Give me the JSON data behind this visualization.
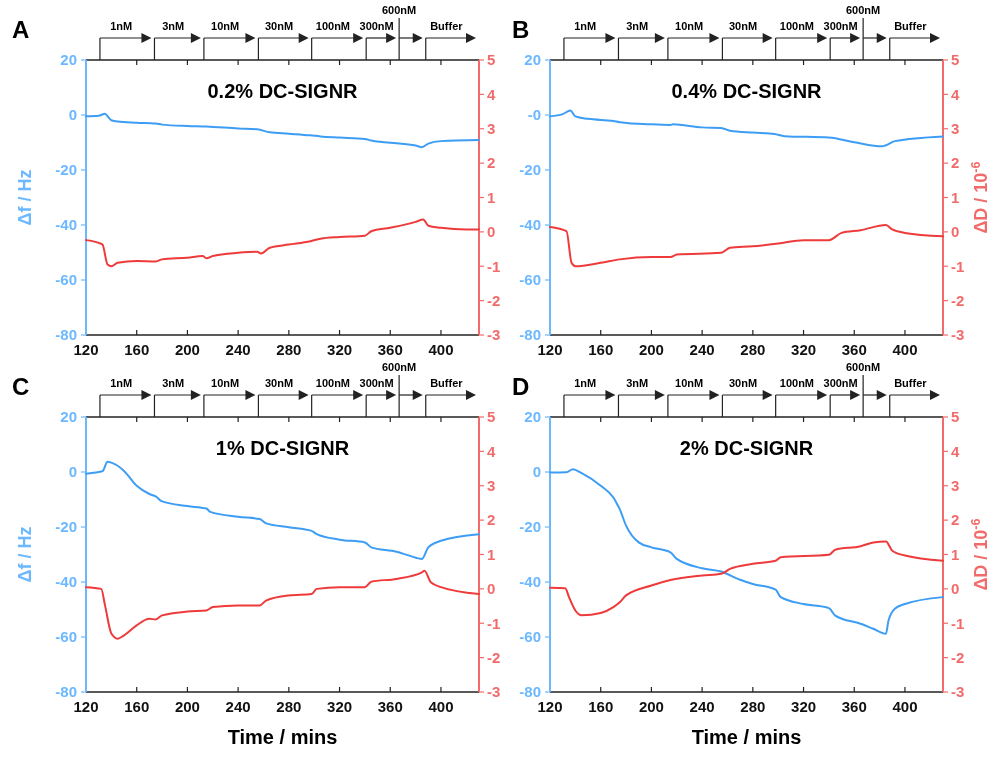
{
  "chart_data": [
    {
      "type": "line",
      "title": "0.2% DC-SIGNR",
      "ylabel": "Δf / Hz",
      "xlim": [
        120,
        430
      ],
      "xticks": [
        120,
        160,
        200,
        240,
        280,
        320,
        360,
        400
      ],
      "ylim": [
        -80,
        20
      ],
      "yticks": [
        -80,
        -60,
        -40,
        -20,
        0,
        20
      ],
      "y2lim": [
        -3,
        5
      ],
      "y2ticks": [
        -3,
        -2,
        -1,
        0,
        1,
        2,
        3,
        4,
        5
      ],
      "annotations": [
        "A"
      ],
      "ref_lines": [
        {
          "axis": "x",
          "value": 131,
          "label": "1nM"
        },
        {
          "axis": "x",
          "value": 174,
          "label": "3nM"
        },
        {
          "axis": "x",
          "value": 213,
          "label": "10nM"
        },
        {
          "axis": "x",
          "value": 256,
          "label": "30nM"
        },
        {
          "axis": "x",
          "value": 298,
          "label": "100nM"
        },
        {
          "axis": "x",
          "value": 341,
          "label": "300nM"
        },
        {
          "axis": "x",
          "value": 367,
          "label": "600nM"
        },
        {
          "axis": "x",
          "value": 388,
          "label": "Buffer"
        }
      ],
      "series": [
        {
          "color": "#3d9df5",
          "x": [
            120,
            130,
            135,
            138,
            140,
            145,
            160,
            175,
            180,
            200,
            215,
            240,
            255,
            265,
            280,
            297,
            305,
            320,
            340,
            345,
            360,
            380,
            385,
            390,
            400,
            430
          ],
          "values": [
            -0.5,
            -0.3,
            0.5,
            -1,
            -1.9,
            -2.4,
            -2.8,
            -3.1,
            -3.5,
            -4,
            -4.2,
            -4.9,
            -5.2,
            -6.3,
            -6.8,
            -7.4,
            -7.8,
            -8.2,
            -8.7,
            -9.3,
            -10.1,
            -11.1,
            -11.7,
            -10.4,
            -9.5,
            -9.1
          ]
        },
        {
          "color": "#ee3a3a",
          "axis": "y2",
          "x": [
            120,
            130,
            133,
            137,
            140,
            145,
            160,
            175,
            180,
            200,
            212,
            215,
            220,
            240,
            255,
            258,
            265,
            280,
            297,
            305,
            320,
            340,
            345,
            360,
            380,
            386,
            390,
            400,
            420,
            430
          ],
          "values": [
            -0.24,
            -0.32,
            -0.37,
            -0.95,
            -1.0,
            -0.9,
            -0.85,
            -0.86,
            -0.8,
            -0.75,
            -0.7,
            -0.77,
            -0.7,
            -0.61,
            -0.58,
            -0.63,
            -0.46,
            -0.37,
            -0.27,
            -0.2,
            -0.15,
            -0.11,
            0.02,
            0.12,
            0.29,
            0.36,
            0.18,
            0.12,
            0.07,
            0.07
          ]
        }
      ]
    },
    {
      "type": "line",
      "title": "0.4% DC-SIGNR",
      "y2label": "ΔD / 10$^{-6}$",
      "xlim": [
        120,
        430
      ],
      "xticks": [
        120,
        160,
        200,
        240,
        280,
        320,
        360,
        400
      ],
      "ylim": [
        -80,
        20
      ],
      "yticks": [
        -80,
        -60,
        -40,
        -20,
        {
          "value": 0,
          "label": "-0"
        },
        20
      ],
      "y2lim": [
        -3,
        5
      ],
      "y2ticks": [
        -3,
        -2,
        -1,
        0,
        1,
        2,
        3,
        4,
        5
      ],
      "annotations": [
        "B"
      ],
      "ref_lines": [
        {
          "axis": "x",
          "value": 131,
          "label": "1nM"
        },
        {
          "axis": "x",
          "value": 174,
          "label": "3nM"
        },
        {
          "axis": "x",
          "value": 213,
          "label": "10nM"
        },
        {
          "axis": "x",
          "value": 256,
          "label": "30nM"
        },
        {
          "axis": "x",
          "value": 298,
          "label": "100nM"
        },
        {
          "axis": "x",
          "value": 341,
          "label": "300nM"
        },
        {
          "axis": "x",
          "value": 367,
          "label": "600nM"
        },
        {
          "axis": "x",
          "value": 388,
          "label": "Buffer"
        }
      ],
      "series": [
        {
          "color": "#3d9df5",
          "x": [
            120,
            130,
            136,
            140,
            150,
            170,
            175,
            200,
            215,
            217,
            240,
            255,
            262,
            280,
            297,
            305,
            340,
            360,
            382,
            385,
            392,
            430
          ],
          "values": [
            -0.5,
            0.3,
            1.6,
            -0.5,
            -1.4,
            -2.2,
            -2.6,
            -3.4,
            -3.6,
            -3.4,
            -4.5,
            -4.7,
            -5.7,
            -6.4,
            -6.9,
            -7.7,
            -8.2,
            -9.9,
            -11.4,
            -11,
            -9.5,
            -7.8
          ]
        },
        {
          "color": "#ee3a3a",
          "axis": "y2",
          "x": [
            120,
            133,
            137,
            140,
            160,
            175,
            200,
            215,
            220,
            255,
            262,
            280,
            300,
            320,
            340,
            350,
            365,
            385,
            390,
            400,
            430
          ],
          "values": [
            0.14,
            0.02,
            -0.9,
            -1.0,
            -0.9,
            -0.8,
            -0.73,
            -0.73,
            -0.66,
            -0.61,
            -0.46,
            -0.42,
            -0.34,
            -0.24,
            -0.24,
            -0.03,
            0.05,
            0.2,
            0.07,
            -0.03,
            -0.13
          ]
        }
      ]
    },
    {
      "type": "line",
      "title": "1% DC-SIGNR",
      "xlabel": "Time / mins",
      "ylabel": "Δf / Hz",
      "xlim": [
        120,
        430
      ],
      "xticks": [
        120,
        160,
        200,
        240,
        280,
        320,
        360,
        400
      ],
      "ylim": [
        -80,
        20
      ],
      "yticks": [
        -80,
        -60,
        -40,
        -20,
        0,
        20
      ],
      "y2lim": [
        -3,
        5
      ],
      "y2ticks": [
        -3,
        -2,
        -1,
        0,
        1,
        2,
        3,
        4,
        5
      ],
      "annotations": [
        "C"
      ],
      "ref_lines": [
        {
          "axis": "x",
          "value": 131,
          "label": "1nM"
        },
        {
          "axis": "x",
          "value": 174,
          "label": "3nM"
        },
        {
          "axis": "x",
          "value": 213,
          "label": "10nM"
        },
        {
          "axis": "x",
          "value": 256,
          "label": "30nM"
        },
        {
          "axis": "x",
          "value": 298,
          "label": "100nM"
        },
        {
          "axis": "x",
          "value": 341,
          "label": "300nM"
        },
        {
          "axis": "x",
          "value": 367,
          "label": "600nM"
        },
        {
          "axis": "x",
          "value": 388,
          "label": "Buffer"
        }
      ],
      "series": [
        {
          "color": "#3d9df5",
          "x": [
            120,
            130,
            133,
            137,
            140,
            150,
            160,
            170,
            175,
            180,
            200,
            215,
            218,
            240,
            257,
            262,
            280,
            298,
            302,
            320,
            340,
            345,
            365,
            375,
            385,
            390,
            400,
            430
          ],
          "values": [
            -0.6,
            0,
            0.3,
            3.7,
            3.4,
            0.4,
            -5,
            -8,
            -8.9,
            -10.7,
            -12.4,
            -13.3,
            -14.5,
            -16.3,
            -17.1,
            -18.7,
            -20.1,
            -21.4,
            -22.6,
            -24.6,
            -25.6,
            -27.4,
            -29,
            -30.4,
            -31.6,
            -27.4,
            -25,
            -22.6
          ]
        },
        {
          "color": "#ee3a3a",
          "axis": "y2",
          "x": [
            120,
            132,
            135,
            140,
            145,
            150,
            160,
            170,
            175,
            180,
            200,
            215,
            220,
            240,
            257,
            262,
            280,
            298,
            302,
            320,
            340,
            345,
            365,
            385,
            387,
            392,
            400,
            430
          ],
          "values": [
            0.05,
            0,
            -0.48,
            -1.3,
            -1.45,
            -1.35,
            -1.06,
            -0.87,
            -0.89,
            -0.77,
            -0.66,
            -0.63,
            -0.53,
            -0.48,
            -0.48,
            -0.34,
            -0.19,
            -0.15,
            0,
            0.05,
            0.05,
            0.21,
            0.29,
            0.48,
            0.53,
            0.19,
            0.05,
            -0.15
          ]
        }
      ]
    },
    {
      "type": "line",
      "title": "2% DC-SIGNR",
      "xlabel": "Time / mins",
      "y2label": "ΔD / 10$^{-6}$",
      "xlim": [
        120,
        430
      ],
      "xticks": [
        120,
        160,
        200,
        240,
        280,
        320,
        360,
        400
      ],
      "ylim": [
        -80,
        20
      ],
      "yticks": [
        -80,
        -60,
        -40,
        -20,
        0,
        20
      ],
      "y2lim": [
        -3,
        5
      ],
      "y2ticks": [
        -3,
        -2,
        -1,
        0,
        1,
        2,
        3,
        4,
        5
      ],
      "annotations": [
        "D"
      ],
      "ref_lines": [
        {
          "axis": "x",
          "value": 131,
          "label": "1nM"
        },
        {
          "axis": "x",
          "value": 174,
          "label": "3nM"
        },
        {
          "axis": "x",
          "value": 213,
          "label": "10nM"
        },
        {
          "axis": "x",
          "value": 256,
          "label": "30nM"
        },
        {
          "axis": "x",
          "value": 298,
          "label": "100nM"
        },
        {
          "axis": "x",
          "value": 341,
          "label": "300nM"
        },
        {
          "axis": "x",
          "value": 367,
          "label": "600nM"
        },
        {
          "axis": "x",
          "value": 388,
          "label": "Buffer"
        }
      ],
      "series": [
        {
          "color": "#3d9df5",
          "x": [
            120,
            133,
            138,
            145,
            160,
            170,
            173,
            175,
            180,
            190,
            200,
            215,
            220,
            240,
            255,
            270,
            280,
            298,
            302,
            320,
            340,
            345,
            365,
            375,
            385,
            387,
            392,
            400,
            430
          ],
          "values": [
            -0.2,
            -0.1,
            1,
            -0.4,
            -5,
            -9.3,
            -11.7,
            -13.5,
            -19.5,
            -25.6,
            -27.4,
            -29.2,
            -31.6,
            -35,
            -36.2,
            -39.2,
            -40.7,
            -42.8,
            -45.5,
            -48,
            -49.5,
            -52.2,
            -55.2,
            -57,
            -58.8,
            -54,
            -49.7,
            -48,
            -45.5
          ]
        },
        {
          "color": "#ee3a3a",
          "axis": "y2",
          "x": [
            120,
            132,
            135,
            140,
            145,
            160,
            170,
            175,
            180,
            200,
            215,
            240,
            255,
            262,
            280,
            298,
            302,
            340,
            345,
            365,
            375,
            385,
            390,
            400,
            430
          ],
          "values": [
            0.03,
            0.02,
            -0.24,
            -0.63,
            -0.77,
            -0.7,
            -0.53,
            -0.39,
            -0.19,
            0.1,
            0.26,
            0.39,
            0.44,
            0.58,
            0.73,
            0.82,
            0.92,
            0.99,
            1.14,
            1.24,
            1.35,
            1.38,
            1.11,
            0.97,
            0.82
          ]
        }
      ]
    }
  ]
}
